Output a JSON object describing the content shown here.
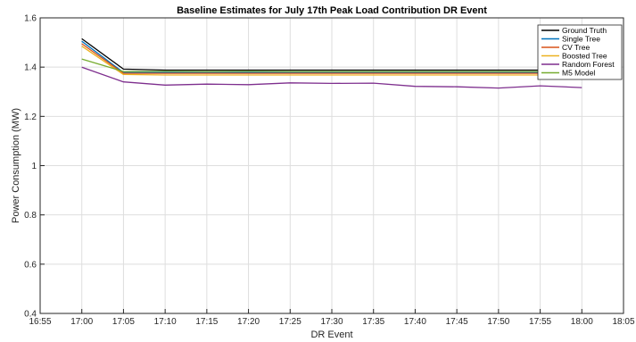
{
  "chart_data": {
    "type": "line",
    "title": "Baseline Estimates for July 17th Peak Load Contribution DR Event",
    "xlabel": "DR Event",
    "ylabel": "Power Consumption (MW)",
    "x_ticks": [
      "16:55",
      "17:00",
      "17:05",
      "17:10",
      "17:15",
      "17:20",
      "17:25",
      "17:30",
      "17:35",
      "17:40",
      "17:45",
      "17:50",
      "17:55",
      "18:00",
      "18:05"
    ],
    "y_ticks": [
      "0.4",
      "0.6",
      "0.8",
      "1",
      "1.2",
      "1.4",
      "1.6"
    ],
    "ylim": [
      0.4,
      1.6
    ],
    "grid": true,
    "legend_position": "top-right",
    "x": [
      "17:00",
      "17:05",
      "17:10",
      "17:15",
      "17:20",
      "17:25",
      "17:30",
      "17:35",
      "17:40",
      "17:45",
      "17:50",
      "17:55",
      "18:00"
    ],
    "series": [
      {
        "name": "Ground Truth",
        "color": "#000000",
        "values": [
          1.515,
          1.392,
          1.388,
          1.388,
          1.388,
          1.388,
          1.388,
          1.388,
          1.388,
          1.388,
          1.388,
          1.388,
          1.388
        ]
      },
      {
        "name": "Single Tree",
        "color": "#0072BD",
        "values": [
          1.505,
          1.378,
          1.378,
          1.378,
          1.378,
          1.378,
          1.378,
          1.378,
          1.378,
          1.378,
          1.378,
          1.378,
          1.378
        ]
      },
      {
        "name": "CV Tree",
        "color": "#D95319",
        "values": [
          1.495,
          1.375,
          1.375,
          1.375,
          1.375,
          1.375,
          1.375,
          1.375,
          1.375,
          1.375,
          1.375,
          1.375,
          1.375
        ]
      },
      {
        "name": "Boosted Tree",
        "color": "#EDB120",
        "values": [
          1.485,
          1.37,
          1.368,
          1.368,
          1.368,
          1.368,
          1.368,
          1.368,
          1.368,
          1.368,
          1.368,
          1.368,
          1.368
        ]
      },
      {
        "name": "Random Forest",
        "color": "#7E2F8E",
        "values": [
          1.4,
          1.34,
          1.327,
          1.331,
          1.329,
          1.336,
          1.334,
          1.335,
          1.322,
          1.32,
          1.315,
          1.324,
          1.317
        ]
      },
      {
        "name": "M5 Model",
        "color": "#77AC30",
        "values": [
          1.433,
          1.382,
          1.383,
          1.382,
          1.383,
          1.382,
          1.382,
          1.382,
          1.382,
          1.382,
          1.382,
          1.382,
          1.382
        ]
      }
    ]
  }
}
